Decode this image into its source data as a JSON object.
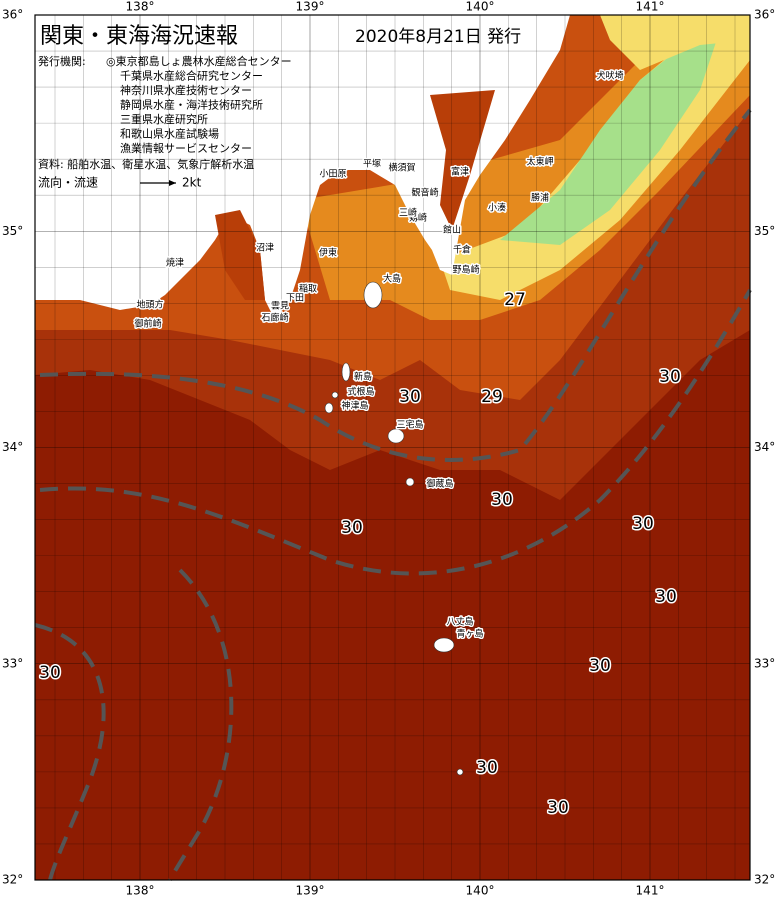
{
  "header": {
    "title": "関東・東海海況速報",
    "date": "2020年8月21日 発行"
  },
  "issuers": {
    "label": "発行機関:",
    "items": [
      "◎東京都島しょ農林水産総合センター",
      "千葉県水産総合研究センター",
      "神奈川県水産技術センター",
      "静岡県水産・海洋技術研究所",
      "三重県水産研究所",
      "和歌山県水産試験場",
      "漁業情報サービスセンター"
    ]
  },
  "sources": "資料: 船舶水温、衛星水温、気象庁解析水温",
  "flow_legend": {
    "label": "流向・流速",
    "scale": "2kt"
  },
  "longitude_labels": [
    "138°",
    "139°",
    "140°",
    "141°"
  ],
  "latitude_labels": [
    "36°",
    "35°",
    "34°",
    "33°",
    "32°"
  ],
  "temperature_labels": [
    27,
    29,
    30,
    30,
    30,
    30,
    30,
    30,
    30,
    30,
    30,
    30
  ],
  "place_names": [
    "犬吠埼",
    "太東岬",
    "勝浦",
    "小湊",
    "富津",
    "館山",
    "千倉",
    "野島崎",
    "横須賀",
    "平塚",
    "小田原",
    "観音崎",
    "剱崎",
    "三崎",
    "伊東",
    "沼津",
    "焼津",
    "稲取",
    "雲見",
    "下田",
    "石廊崎",
    "地頭方",
    "御前崎",
    "大島",
    "新島",
    "式根島",
    "神津島",
    "三宅島",
    "御蔵島",
    "八丈島",
    "青ヶ島"
  ]
}
